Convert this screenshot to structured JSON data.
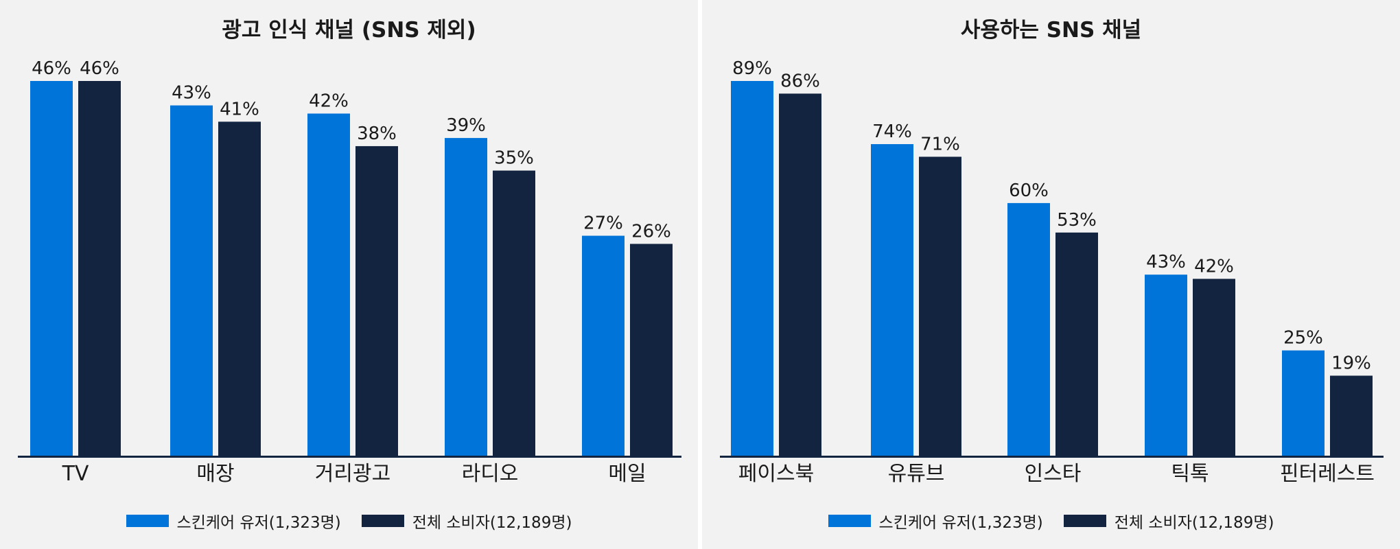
{
  "colors": {
    "series_a": "#0074d9",
    "series_b": "#12243f",
    "background": "#f2f2f2",
    "axis": "#12243f"
  },
  "chart_data": [
    {
      "type": "bar",
      "title": "광고 인식 채널 (SNS 제외)",
      "categories": [
        "TV",
        "매장",
        "거리광고",
        "라디오",
        "메일"
      ],
      "series": [
        {
          "name": "스킨케어 유저(1,323명)",
          "values": [
            46,
            43,
            42,
            39,
            27
          ]
        },
        {
          "name": "전체 소비자(12,189명)",
          "values": [
            46,
            41,
            38,
            35,
            26
          ]
        }
      ],
      "value_suffix": "%",
      "ylim": [
        0,
        46
      ],
      "grid": false,
      "legend_position": "bottom"
    },
    {
      "type": "bar",
      "title": "사용하는 SNS 채널",
      "categories": [
        "페이스북",
        "유튜브",
        "인스타",
        "틱톡",
        "핀터레스트"
      ],
      "series": [
        {
          "name": "스킨케어 유저(1,323명)",
          "values": [
            89,
            74,
            60,
            43,
            25
          ]
        },
        {
          "name": "전체 소비자(12,189명)",
          "values": [
            86,
            71,
            53,
            42,
            19
          ]
        }
      ],
      "value_suffix": "%",
      "ylim": [
        0,
        89
      ],
      "grid": false,
      "legend_position": "bottom"
    }
  ]
}
